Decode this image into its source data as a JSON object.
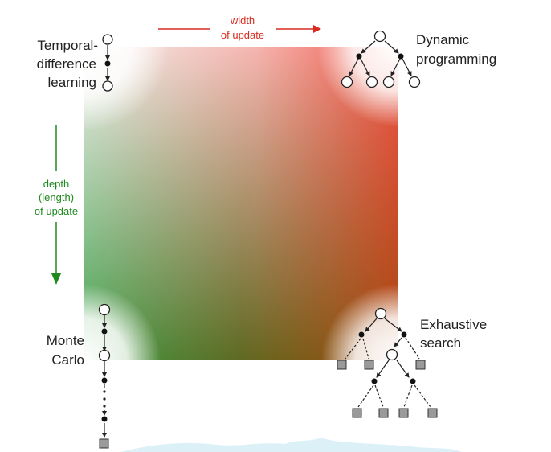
{
  "axes": {
    "width": {
      "line1": "width",
      "line2": "of update",
      "color": "#d92b20"
    },
    "depth": {
      "line1": "depth",
      "line2": "(length)",
      "line3": "of update",
      "color": "#1e8a1e"
    }
  },
  "corners": {
    "temporal_difference": {
      "line1": "Temporal-",
      "line2": "difference",
      "line3": "learning"
    },
    "dynamic_programming": {
      "line1": "Dynamic",
      "line2": "programming"
    },
    "monte_carlo": {
      "line1": "Monte",
      "line2": "Carlo"
    },
    "exhaustive_search": {
      "line1": "Exhaustive",
      "line2": "search"
    }
  },
  "gradient_colors": {
    "top_left": "#ffffff",
    "top_right": "#ee5a4a",
    "bottom_left": "#3f9b45",
    "bottom_right": "#a44b10"
  }
}
